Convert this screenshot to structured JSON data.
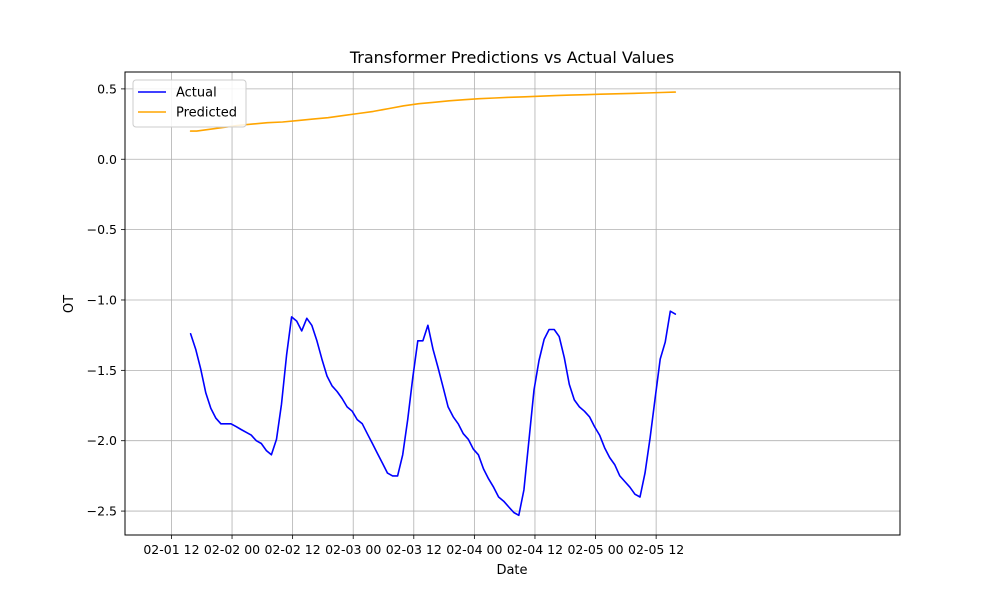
{
  "chart_data": {
    "type": "line",
    "title": "Transformer Predictions vs Actual Values",
    "xlabel": "Date",
    "ylabel": "OT",
    "grid": true,
    "legend_position": "top-left",
    "x_unit_hours": true,
    "xlim_hours": [
      -9.2,
      144.3
    ],
    "ylim": [
      -2.67,
      0.62
    ],
    "x_ticks": [
      {
        "hours": 0,
        "label": "02-01 12"
      },
      {
        "hours": 12,
        "label": "02-02 00"
      },
      {
        "hours": 24,
        "label": "02-02 12"
      },
      {
        "hours": 36,
        "label": "02-03 00"
      },
      {
        "hours": 48,
        "label": "02-03 12"
      },
      {
        "hours": 60,
        "label": "02-04 00"
      },
      {
        "hours": 72,
        "label": "02-04 12"
      },
      {
        "hours": 84,
        "label": "02-05 00"
      },
      {
        "hours": 96,
        "label": "02-05 12"
      }
    ],
    "y_ticks": [
      {
        "value": 0.5,
        "label": "0.5"
      },
      {
        "value": 0.0,
        "label": "0.0"
      },
      {
        "value": -0.5,
        "label": "−0.5"
      },
      {
        "value": -1.0,
        "label": "−1.0"
      },
      {
        "value": -1.5,
        "label": "−1.5"
      },
      {
        "value": -2.0,
        "label": "−2.0"
      },
      {
        "value": -2.5,
        "label": "−2.5"
      }
    ],
    "series": [
      {
        "name": "Actual",
        "color": "#0000ff",
        "points": [
          [
            3.8,
            -1.24
          ],
          [
            4.8,
            -1.35
          ],
          [
            5.8,
            -1.49
          ],
          [
            6.8,
            -1.66
          ],
          [
            7.8,
            -1.77
          ],
          [
            8.8,
            -1.84
          ],
          [
            9.8,
            -1.88
          ],
          [
            10.8,
            -1.88
          ],
          [
            11.8,
            -1.88
          ],
          [
            12.8,
            -1.9
          ],
          [
            13.8,
            -1.92
          ],
          [
            14.8,
            -1.94
          ],
          [
            15.8,
            -1.96
          ],
          [
            16.8,
            -2.0
          ],
          [
            17.8,
            -2.02
          ],
          [
            18.8,
            -2.07
          ],
          [
            19.8,
            -2.1
          ],
          [
            20.8,
            -1.99
          ],
          [
            21.8,
            -1.74
          ],
          [
            22.8,
            -1.39
          ],
          [
            23.8,
            -1.12
          ],
          [
            24.8,
            -1.15
          ],
          [
            25.8,
            -1.22
          ],
          [
            26.8,
            -1.13
          ],
          [
            27.8,
            -1.18
          ],
          [
            28.8,
            -1.29
          ],
          [
            29.8,
            -1.42
          ],
          [
            30.8,
            -1.54
          ],
          [
            31.8,
            -1.61
          ],
          [
            32.8,
            -1.65
          ],
          [
            33.8,
            -1.7
          ],
          [
            34.8,
            -1.76
          ],
          [
            35.8,
            -1.79
          ],
          [
            36.8,
            -1.85
          ],
          [
            37.8,
            -1.88
          ],
          [
            38.8,
            -1.95
          ],
          [
            39.8,
            -2.02
          ],
          [
            40.8,
            -2.09
          ],
          [
            41.8,
            -2.16
          ],
          [
            42.8,
            -2.23
          ],
          [
            43.8,
            -2.25
          ],
          [
            44.8,
            -2.25
          ],
          [
            45.8,
            -2.1
          ],
          [
            46.8,
            -1.85
          ],
          [
            47.8,
            -1.55
          ],
          [
            48.8,
            -1.29
          ],
          [
            49.8,
            -1.29
          ],
          [
            50.8,
            -1.18
          ],
          [
            51.8,
            -1.35
          ],
          [
            52.8,
            -1.48
          ],
          [
            53.8,
            -1.62
          ],
          [
            54.8,
            -1.76
          ],
          [
            55.8,
            -1.83
          ],
          [
            56.8,
            -1.88
          ],
          [
            57.8,
            -1.95
          ],
          [
            58.8,
            -1.99
          ],
          [
            59.8,
            -2.06
          ],
          [
            60.8,
            -2.1
          ],
          [
            61.8,
            -2.2
          ],
          [
            62.8,
            -2.27
          ],
          [
            63.8,
            -2.33
          ],
          [
            64.8,
            -2.4
          ],
          [
            65.8,
            -2.43
          ],
          [
            66.8,
            -2.47
          ],
          [
            67.8,
            -2.51
          ],
          [
            68.8,
            -2.53
          ],
          [
            69.8,
            -2.35
          ],
          [
            70.8,
            -2.0
          ],
          [
            71.8,
            -1.64
          ],
          [
            72.8,
            -1.43
          ],
          [
            73.8,
            -1.28
          ],
          [
            74.8,
            -1.21
          ],
          [
            75.8,
            -1.21
          ],
          [
            76.8,
            -1.26
          ],
          [
            77.8,
            -1.41
          ],
          [
            78.8,
            -1.6
          ],
          [
            79.8,
            -1.71
          ],
          [
            80.8,
            -1.76
          ],
          [
            81.8,
            -1.79
          ],
          [
            82.8,
            -1.83
          ],
          [
            83.8,
            -1.9
          ],
          [
            84.8,
            -1.96
          ],
          [
            85.8,
            -2.05
          ],
          [
            86.8,
            -2.12
          ],
          [
            87.8,
            -2.17
          ],
          [
            88.8,
            -2.25
          ],
          [
            89.8,
            -2.29
          ],
          [
            90.8,
            -2.33
          ],
          [
            91.8,
            -2.38
          ],
          [
            92.8,
            -2.4
          ],
          [
            93.8,
            -2.23
          ],
          [
            94.8,
            -1.98
          ],
          [
            95.8,
            -1.7
          ],
          [
            96.8,
            -1.42
          ],
          [
            97.8,
            -1.3
          ],
          [
            98.8,
            -1.08
          ],
          [
            99.8,
            -1.1
          ]
        ]
      },
      {
        "name": "Predicted",
        "color": "#ffa500",
        "points": [
          [
            3.8,
            0.2
          ],
          [
            5.0,
            0.2
          ],
          [
            7.0,
            0.21
          ],
          [
            9.0,
            0.22
          ],
          [
            11.0,
            0.23
          ],
          [
            13.0,
            0.24
          ],
          [
            16.0,
            0.25
          ],
          [
            19.0,
            0.26
          ],
          [
            22.0,
            0.265
          ],
          [
            25.0,
            0.275
          ],
          [
            28.0,
            0.285
          ],
          [
            31.0,
            0.295
          ],
          [
            34.0,
            0.31
          ],
          [
            37.0,
            0.325
          ],
          [
            40.0,
            0.34
          ],
          [
            43.0,
            0.36
          ],
          [
            46.0,
            0.38
          ],
          [
            49.0,
            0.395
          ],
          [
            52.0,
            0.405
          ],
          [
            55.0,
            0.415
          ],
          [
            58.0,
            0.423
          ],
          [
            61.0,
            0.43
          ],
          [
            64.0,
            0.435
          ],
          [
            67.0,
            0.44
          ],
          [
            70.0,
            0.444
          ],
          [
            73.0,
            0.448
          ],
          [
            76.0,
            0.452
          ],
          [
            79.0,
            0.456
          ],
          [
            82.0,
            0.459
          ],
          [
            85.0,
            0.462
          ],
          [
            88.0,
            0.465
          ],
          [
            91.0,
            0.468
          ],
          [
            94.0,
            0.471
          ],
          [
            97.0,
            0.474
          ],
          [
            99.8,
            0.477
          ]
        ]
      }
    ]
  }
}
